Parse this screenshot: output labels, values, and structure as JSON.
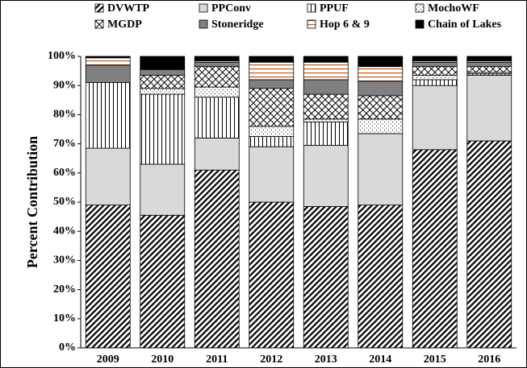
{
  "chart_data": {
    "type": "stacked_bar",
    "y_label": "Percent Contribution",
    "categories": [
      "2009",
      "2010",
      "2011",
      "2012",
      "2013",
      "2014",
      "2015",
      "2016"
    ],
    "series": [
      {
        "name": "DVWTP",
        "color": "#000000",
        "pattern": "diagonal",
        "values": [
          49,
          45.5,
          61,
          50,
          48.5,
          49,
          68,
          71
        ]
      },
      {
        "name": "PPConv",
        "color": "#d9d9d9",
        "pattern": "solid",
        "values": [
          19.5,
          17.5,
          11,
          19,
          21,
          24.5,
          22,
          22.5
        ]
      },
      {
        "name": "PPUF",
        "color": "#000000",
        "pattern": "vertical",
        "values": [
          22.5,
          24,
          14,
          3.5,
          8,
          0,
          2,
          0.5
        ]
      },
      {
        "name": "MochoWF",
        "color": "#000000",
        "pattern": "dots",
        "values": [
          0,
          2,
          3.5,
          3.5,
          1,
          5,
          1.5,
          0.5
        ]
      },
      {
        "name": "MGDP",
        "color": "#000000",
        "pattern": "cross",
        "values": [
          0,
          4.5,
          7,
          13,
          8.5,
          8,
          3,
          2
        ]
      },
      {
        "name": "Stoneridge",
        "color": "#808080",
        "pattern": "solid",
        "values": [
          6,
          2,
          1.5,
          3,
          5,
          5,
          1.5,
          1.5
        ]
      },
      {
        "name": "Hop 6 & 9",
        "color": "#c55a11",
        "pattern": "horizontal",
        "values": [
          2.5,
          0,
          0.5,
          6,
          6,
          5,
          0.5,
          0.5
        ]
      },
      {
        "name": "Chain of Lakes",
        "color": "#000000",
        "pattern": "solid",
        "values": [
          0.5,
          4.5,
          1.5,
          2,
          2,
          3.5,
          1.5,
          1.5
        ]
      }
    ],
    "ylim": [
      0,
      100
    ],
    "yticks": [
      {
        "value": 0,
        "label": "0%"
      },
      {
        "value": 10,
        "label": "10%"
      },
      {
        "value": 20,
        "label": "20%"
      },
      {
        "value": 30,
        "label": "30%"
      },
      {
        "value": 40,
        "label": "40%"
      },
      {
        "value": 50,
        "label": "50%"
      },
      {
        "value": 60,
        "label": "60%"
      },
      {
        "value": 70,
        "label": "70%"
      },
      {
        "value": 80,
        "label": "80%"
      },
      {
        "value": 90,
        "label": "90%"
      },
      {
        "value": 100,
        "label": "100%"
      }
    ],
    "grid": false
  }
}
